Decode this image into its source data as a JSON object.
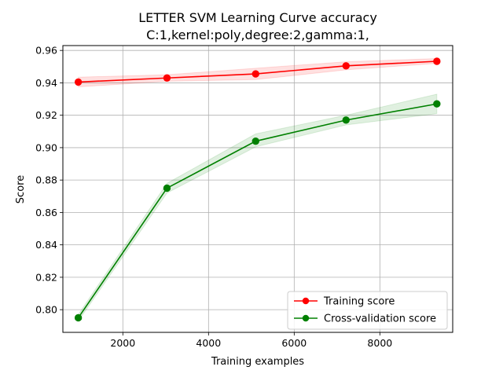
{
  "chart_data": {
    "type": "line",
    "title": "LETTER SVM Learning Curve accuracy",
    "subtitle": "C:1,kernel:poly,degree:2,gamma:1,",
    "xlabel": "Training examples",
    "ylabel": "Score",
    "xlim": [
      600,
      9700
    ],
    "ylim": [
      0.786,
      0.963
    ],
    "xticks": [
      2000,
      4000,
      6000,
      8000
    ],
    "xtick_labels": [
      "2000",
      "4000",
      "6000",
      "8000"
    ],
    "yticks": [
      0.8,
      0.82,
      0.84,
      0.86,
      0.88,
      0.9,
      0.92,
      0.94,
      0.96
    ],
    "ytick_labels": [
      "0.80",
      "0.82",
      "0.84",
      "0.86",
      "0.88",
      "0.90",
      "0.92",
      "0.94",
      "0.96"
    ],
    "grid": true,
    "legend_position": "lower-right",
    "x": [
      960,
      3030,
      5100,
      7210,
      9330
    ],
    "series": [
      {
        "name": "Training score",
        "color": "#ff0000",
        "values": [
          0.9405,
          0.943,
          0.9455,
          0.9505,
          0.9533
        ],
        "band_low": [
          0.9375,
          0.941,
          0.942,
          0.948,
          0.952
        ],
        "band_high": [
          0.9435,
          0.945,
          0.949,
          0.953,
          0.955
        ]
      },
      {
        "name": "Cross-validation score",
        "color": "#008000",
        "values": [
          0.795,
          0.875,
          0.904,
          0.917,
          0.927
        ],
        "band_low": [
          0.793,
          0.872,
          0.9005,
          0.914,
          0.921
        ],
        "band_high": [
          0.797,
          0.878,
          0.9085,
          0.92,
          0.933
        ]
      }
    ]
  }
}
